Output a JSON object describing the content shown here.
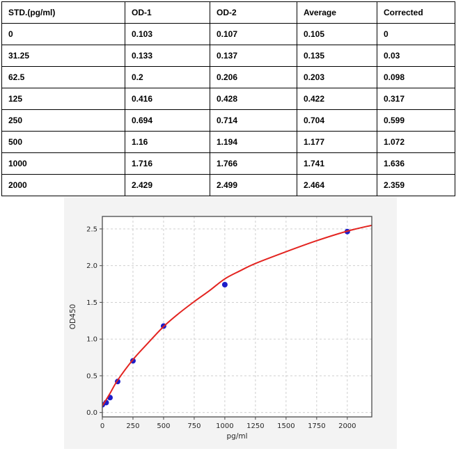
{
  "page": {
    "background": "#ffffff"
  },
  "table": {
    "columns": [
      "STD.(pg/ml)",
      "OD-1",
      "OD-2",
      "Average",
      "Corrected"
    ],
    "rows": [
      [
        "0",
        "0.103",
        "0.107",
        "0.105",
        "0"
      ],
      [
        "31.25",
        "0.133",
        "0.137",
        "0.135",
        "0.03"
      ],
      [
        "62.5",
        "0.2",
        "0.206",
        "0.203",
        "0.098"
      ],
      [
        "125",
        "0.416",
        "0.428",
        "0.422",
        "0.317"
      ],
      [
        "250",
        "0.694",
        "0.714",
        "0.704",
        "0.599"
      ],
      [
        "500",
        "1.16",
        "1.194",
        "1.177",
        "1.072"
      ],
      [
        "1000",
        "1.716",
        "1.766",
        "1.741",
        "1.636"
      ],
      [
        "2000",
        "2.429",
        "2.499",
        "2.464",
        "2.359"
      ]
    ]
  },
  "chart_data": {
    "type": "scatter",
    "title": "",
    "xlabel": "pg/ml",
    "ylabel": "OD450",
    "xlim": [
      0,
      2200
    ],
    "ylim": [
      -0.06,
      2.67
    ],
    "grid": true,
    "legend": "none",
    "x_ticks": [
      0,
      250,
      500,
      750,
      1000,
      1250,
      1500,
      1750,
      2000
    ],
    "x_tick_labels": [
      "0",
      "250",
      "500",
      "750",
      "1000",
      "1250",
      "1500",
      "1750",
      "2000"
    ],
    "y_ticks": [
      0,
      0.5,
      1.0,
      1.5,
      2.0,
      2.5
    ],
    "y_tick_labels": [
      "0.0",
      "0.5",
      "1.0",
      "1.5",
      "2.0",
      "2.5"
    ],
    "series": [
      {
        "name": "standard-points",
        "type": "scatter",
        "color": "#1d1dc9",
        "marker_radius": 4,
        "x": [
          0,
          31.25,
          62.5,
          125,
          250,
          500,
          1000,
          2000
        ],
        "y": [
          0.105,
          0.135,
          0.203,
          0.422,
          0.704,
          1.177,
          1.741,
          2.464
        ]
      },
      {
        "name": "fit-curve",
        "type": "line",
        "color": "#e32420",
        "stroke_width": 2,
        "x": [
          0,
          62.5,
          125,
          250,
          375,
          500,
          625,
          750,
          875,
          1000,
          1125,
          1250,
          1500,
          1750,
          2000,
          2200
        ],
        "y": [
          0.09,
          0.26,
          0.44,
          0.72,
          0.95,
          1.17,
          1.35,
          1.51,
          1.66,
          1.82,
          1.93,
          2.03,
          2.19,
          2.34,
          2.47,
          2.55
        ]
      }
    ],
    "colors": {
      "figure_bg": "#f3f3f3",
      "plot_bg": "#ffffff",
      "grid": "#c9c9c9",
      "spine": "#4a4a4a",
      "tick_text": "#262626"
    }
  }
}
